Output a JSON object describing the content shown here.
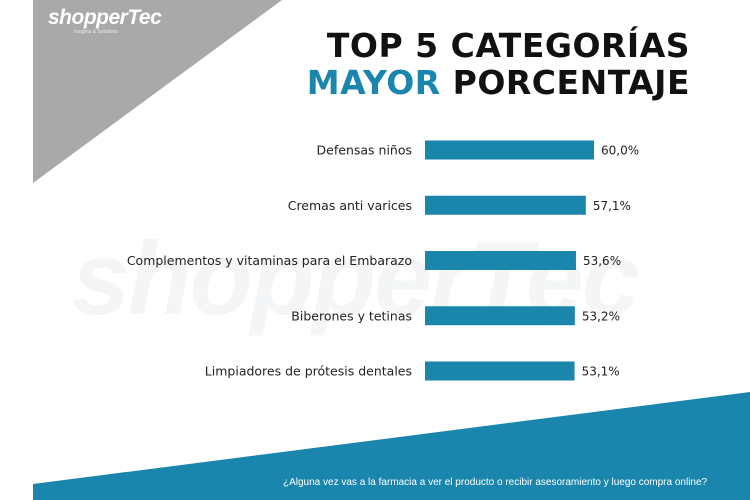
{
  "brand": {
    "logo_text": "shopperTec",
    "tagline": "Insights & Solutions"
  },
  "title": {
    "line1": "TOP 5 CATEGORÍAS",
    "line2_highlight": "MAYOR",
    "line2_rest": " PORCENTAJE"
  },
  "footnote": "¿Alguna vez vas a la farmacia a ver el producto o recibir asesoramiento y luego compra online?",
  "colors": {
    "bar": "#1a86ac",
    "accent": "#1b86ad",
    "corner_gray": "#a9a9a9",
    "band_blue": "#1b86ad"
  },
  "chart_data": {
    "type": "bar",
    "orientation": "horizontal",
    "categories": [
      "Defensas niños",
      "Cremas anti varices",
      "Complementos y vitaminas para el Embarazo",
      "Biberones y tetinas",
      "Limpiadores de prótesis dentales"
    ],
    "values": [
      60.0,
      57.1,
      53.6,
      53.2,
      53.1
    ],
    "value_labels": [
      "60,0%",
      "57,1%",
      "53,6%",
      "53,2%",
      "53,1%"
    ],
    "unit": "%",
    "xlim": [
      0,
      60
    ],
    "grid": false,
    "legend": "none"
  }
}
